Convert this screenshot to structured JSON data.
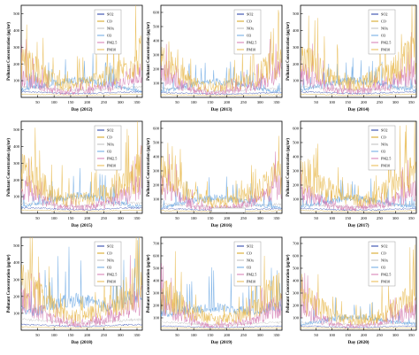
{
  "figure": {
    "ylabel": "Pollutant Concentration (μg/m³)",
    "legend": [
      "SO2",
      "CO",
      "NOx",
      "O3",
      "PM2.5",
      "PM10"
    ],
    "colors": {
      "SO2": "#1f3aa6",
      "CO": "#d4a017",
      "NOx": "#bdbdbd",
      "O3": "#6aa7e3",
      "PM2.5": "#d47ab0",
      "PM10": "#e8b84b"
    }
  },
  "chart_data": [
    {
      "type": "line",
      "xlabel": "Day (2012)",
      "ylabel": "Pollutant Concentration (μg/m³)",
      "legend": [
        "SO2",
        "CO",
        "NOx",
        "O3",
        "PM2.5",
        "PM10"
      ],
      "xticks": [
        50,
        100,
        150,
        200,
        250,
        300,
        350
      ],
      "yticks": [
        100,
        200,
        300,
        400,
        500
      ],
      "ylim": [
        0,
        550
      ],
      "xlim": [
        1,
        366
      ],
      "legend_position": "top-right",
      "series": [
        {
          "name": "PM10",
          "values": [
            210,
            175,
            140,
            95,
            75,
            80,
            90,
            110,
            125,
            160,
            200,
            255
          ]
        },
        {
          "name": "PM2.5",
          "values": [
            120,
            95,
            70,
            40,
            30,
            35,
            40,
            55,
            65,
            85,
            120,
            150
          ]
        },
        {
          "name": "O3",
          "values": [
            45,
            55,
            70,
            85,
            95,
            105,
            100,
            90,
            75,
            60,
            45,
            40
          ]
        }
      ]
    },
    {
      "type": "line",
      "xlabel": "Day (2013)",
      "ylabel": "Pollutant Concentration (μg/m³)",
      "legend": [
        "SO2",
        "CO",
        "NOx",
        "O3",
        "PM2.5",
        "PM10"
      ],
      "xticks": [
        50,
        100,
        150,
        200,
        250,
        300,
        350
      ],
      "yticks": [
        100,
        200,
        300,
        400,
        500,
        600
      ],
      "ylim": [
        0,
        650
      ],
      "xlim": [
        1,
        366
      ],
      "legend_position": "top-right",
      "series": [
        {
          "name": "PM10",
          "values": [
            260,
            210,
            150,
            100,
            80,
            75,
            85,
            100,
            130,
            165,
            230,
            300
          ]
        },
        {
          "name": "PM2.5",
          "values": [
            170,
            130,
            85,
            50,
            35,
            30,
            40,
            55,
            70,
            95,
            140,
            190
          ]
        },
        {
          "name": "O3",
          "values": [
            40,
            55,
            75,
            90,
            100,
            110,
            105,
            95,
            80,
            60,
            45,
            40
          ]
        }
      ]
    },
    {
      "type": "line",
      "xlabel": "Day (2014)",
      "ylabel": "Pollutant Concentration (μg/m³)",
      "legend": [
        "SO2",
        "CO",
        "NOx",
        "O3",
        "PM2.5",
        "PM10"
      ],
      "xticks": [
        50,
        100,
        150,
        200,
        250,
        300,
        350
      ],
      "yticks": [
        100,
        200,
        300,
        400,
        500
      ],
      "ylim": [
        0,
        550
      ],
      "xlim": [
        1,
        366
      ],
      "legend_position": "top-right",
      "series": [
        {
          "name": "PM10",
          "values": [
            230,
            200,
            150,
            110,
            85,
            80,
            90,
            115,
            140,
            170,
            220,
            260
          ]
        },
        {
          "name": "PM2.5",
          "values": [
            150,
            120,
            80,
            50,
            35,
            35,
            40,
            55,
            70,
            90,
            130,
            165
          ]
        },
        {
          "name": "O3",
          "values": [
            45,
            55,
            70,
            85,
            95,
            100,
            100,
            90,
            75,
            60,
            50,
            45
          ]
        }
      ]
    },
    {
      "type": "line",
      "xlabel": "Day (2015)",
      "ylabel": "Pollutant Concentration (μg/m³)",
      "legend": [
        "SO2",
        "CO",
        "NOx",
        "O3",
        "PM2.5",
        "PM10"
      ],
      "xticks": [
        50,
        100,
        150,
        200,
        250,
        300,
        350
      ],
      "yticks": [
        100,
        200,
        300,
        400,
        500
      ],
      "ylim": [
        0,
        550
      ],
      "xlim": [
        1,
        366
      ],
      "legend_position": "top-right",
      "series": [
        {
          "name": "PM10",
          "values": [
            250,
            220,
            160,
            115,
            85,
            80,
            85,
            105,
            130,
            165,
            215,
            270
          ]
        },
        {
          "name": "PM2.5",
          "values": [
            160,
            130,
            85,
            50,
            35,
            30,
            35,
            50,
            65,
            90,
            125,
            170
          ]
        },
        {
          "name": "O3",
          "values": [
            40,
            55,
            70,
            85,
            95,
            105,
            100,
            90,
            75,
            60,
            45,
            40
          ]
        }
      ]
    },
    {
      "type": "line",
      "xlabel": "Day (2016)",
      "ylabel": "Pollutant Concentration (μg/m³)",
      "legend": [
        "SO2",
        "CO",
        "NOx",
        "O3",
        "PM2.5",
        "PM10"
      ],
      "xticks": [
        50,
        100,
        150,
        200,
        250,
        300,
        350
      ],
      "yticks": [
        100,
        200,
        300,
        400,
        500,
        600
      ],
      "ylim": [
        0,
        650
      ],
      "xlim": [
        1,
        366
      ],
      "legend_position": "bottom-center",
      "series": [
        {
          "name": "PM10",
          "values": [
            280,
            240,
            170,
            120,
            90,
            80,
            85,
            100,
            130,
            170,
            230,
            290
          ]
        },
        {
          "name": "PM2.5",
          "values": [
            190,
            150,
            100,
            55,
            40,
            35,
            40,
            50,
            70,
            100,
            150,
            200
          ]
        },
        {
          "name": "O3",
          "values": [
            40,
            55,
            75,
            90,
            100,
            110,
            105,
            95,
            80,
            60,
            45,
            40
          ]
        }
      ]
    },
    {
      "type": "line",
      "xlabel": "Day (2017)",
      "ylabel": "Pollutant Concentration (μg/m³)",
      "legend": [
        "SO2",
        "CO",
        "NOx",
        "O3",
        "PM2.5",
        "PM10"
      ],
      "xticks": [
        50,
        100,
        150,
        200,
        250,
        300,
        350
      ],
      "yticks": [
        100,
        200,
        300,
        400,
        500,
        600
      ],
      "ylim": [
        0,
        650
      ],
      "xlim": [
        1,
        366
      ],
      "legend_position": "top-right",
      "series": [
        {
          "name": "PM10",
          "values": [
            270,
            250,
            200,
            150,
            110,
            95,
            90,
            110,
            150,
            190,
            240,
            300
          ]
        },
        {
          "name": "PM2.5",
          "values": [
            150,
            130,
            90,
            60,
            40,
            35,
            40,
            55,
            70,
            95,
            130,
            160
          ]
        },
        {
          "name": "O3",
          "values": [
            45,
            55,
            75,
            90,
            100,
            110,
            100,
            90,
            75,
            60,
            50,
            45
          ]
        }
      ]
    },
    {
      "type": "line",
      "xlabel": "Day (2018)",
      "ylabel": "Pollutant Concentration (μg/m³)",
      "legend": [
        "SO2",
        "CO",
        "NOx",
        "O3",
        "PM2.5",
        "PM10"
      ],
      "xticks": [
        50,
        100,
        150,
        200,
        250,
        300,
        350
      ],
      "yticks": [
        100,
        200,
        300,
        400,
        500
      ],
      "ylim": [
        0,
        550
      ],
      "xlim": [
        1,
        366
      ],
      "legend_position": "top-right",
      "series": [
        {
          "name": "PM10",
          "values": [
            260,
            230,
            170,
            130,
            95,
            85,
            90,
            110,
            140,
            180,
            240,
            280
          ]
        },
        {
          "name": "PM2.5",
          "values": [
            180,
            150,
            100,
            60,
            40,
            35,
            40,
            55,
            75,
            100,
            150,
            190
          ]
        },
        {
          "name": "O3",
          "values": [
            120,
            110,
            120,
            150,
            170,
            180,
            170,
            150,
            140,
            160,
            200,
            210
          ]
        }
      ]
    },
    {
      "type": "line",
      "xlabel": "Day (2019)",
      "ylabel": "Pollutant Concentration (μg/m³)",
      "legend": [
        "SO2",
        "CO",
        "NOx",
        "O3",
        "PM2.5",
        "PM10"
      ],
      "xticks": [
        50,
        100,
        150,
        200,
        250,
        300,
        350
      ],
      "yticks": [
        100,
        200,
        300,
        400,
        500,
        600,
        700
      ],
      "ylim": [
        0,
        750
      ],
      "xlim": [
        1,
        366
      ],
      "legend_position": "top-right",
      "series": [
        {
          "name": "PM10",
          "values": [
            280,
            250,
            190,
            140,
            100,
            85,
            90,
            110,
            150,
            200,
            280,
            330
          ]
        },
        {
          "name": "PM2.5",
          "values": [
            200,
            170,
            110,
            65,
            40,
            35,
            40,
            55,
            80,
            110,
            170,
            210
          ]
        },
        {
          "name": "O3",
          "values": [
            130,
            140,
            160,
            170,
            180,
            185,
            175,
            160,
            150,
            160,
            180,
            190
          ]
        }
      ]
    },
    {
      "type": "line",
      "xlabel": "Day (2020)",
      "ylabel": "Pollutant Concentration (μg/m³)",
      "legend": [
        "SO2",
        "CO",
        "NOx",
        "O3",
        "PM2.5",
        "PM10"
      ],
      "xticks": [
        50,
        100,
        150,
        200,
        250,
        300,
        350
      ],
      "yticks": [
        100,
        200,
        300,
        400,
        500,
        600,
        700
      ],
      "ylim": [
        0,
        750
      ],
      "xlim": [
        1,
        366
      ],
      "legend_position": "top-right",
      "series": [
        {
          "name": "PM10",
          "values": [
            250,
            220,
            170,
            120,
            90,
            80,
            85,
            100,
            130,
            170,
            230,
            280
          ]
        },
        {
          "name": "PM2.5",
          "values": [
            170,
            140,
            90,
            55,
            35,
            30,
            35,
            50,
            65,
            90,
            140,
            180
          ]
        },
        {
          "name": "O3",
          "values": [
            50,
            60,
            75,
            90,
            100,
            110,
            105,
            95,
            80,
            65,
            55,
            50
          ]
        }
      ]
    }
  ]
}
